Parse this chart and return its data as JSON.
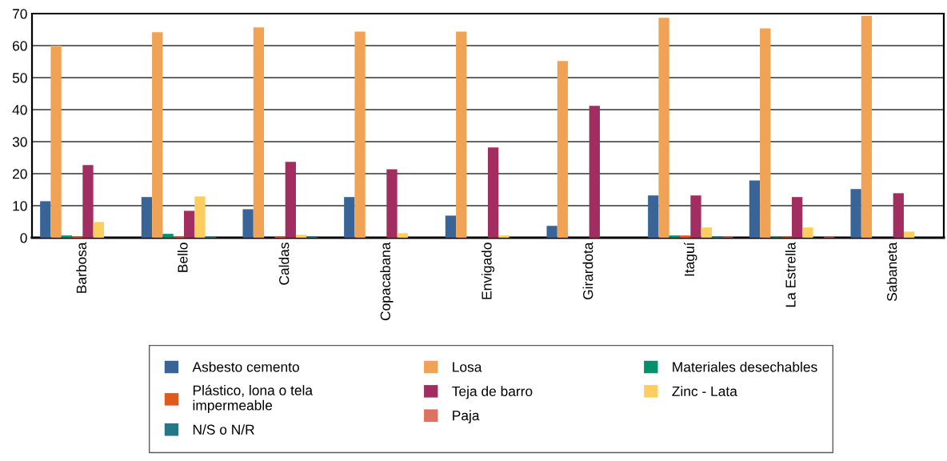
{
  "chart_data": {
    "type": "bar",
    "categories": [
      "Barbosa",
      "Bello",
      "Caldas",
      "Copacabana",
      "Envigado",
      "Girardota",
      "Itaguí",
      "La Estrella",
      "Sabaneta"
    ],
    "series": [
      {
        "name": "Asbesto cemento",
        "color": "#386498",
        "values": [
          11.4,
          12.7,
          8.9,
          12.7,
          6.9,
          3.7,
          13.2,
          17.9,
          15.2
        ]
      },
      {
        "name": "Losa",
        "color": "#f0a354",
        "values": [
          60.0,
          64.2,
          65.7,
          64.4,
          64.4,
          55.2,
          68.7,
          65.4,
          69.3
        ]
      },
      {
        "name": "Materiales desechables",
        "color": "#00906e",
        "values": [
          0.7,
          1.2,
          0,
          0,
          0,
          0,
          0.7,
          0.2,
          0
        ]
      },
      {
        "name": "Plástico, lona o tela\nimpermeable",
        "color": "#e05a1e",
        "values": [
          0.4,
          0.4,
          0.4,
          0,
          0,
          0,
          0.7,
          0.2,
          0
        ]
      },
      {
        "name": "Teja de barro",
        "color": "#a12d61",
        "values": [
          22.7,
          8.4,
          23.7,
          21.4,
          28.2,
          41.2,
          13.2,
          12.7,
          13.9
        ]
      },
      {
        "name": "Zinc - Lata",
        "color": "#fecd5f",
        "values": [
          4.9,
          12.9,
          0.9,
          1.4,
          0.7,
          0,
          3.2,
          3.2,
          1.9
        ]
      },
      {
        "name": "N/S o N/R",
        "color": "#267688",
        "values": [
          0,
          0.3,
          0.4,
          0,
          0,
          0,
          0.4,
          0,
          0
        ]
      },
      {
        "name": "Paja",
        "color": "#e07062",
        "values": [
          0,
          0,
          0,
          0,
          0,
          0,
          0.2,
          0.2,
          0
        ]
      }
    ],
    "ylim": [
      0,
      70
    ],
    "yticks": [
      0,
      10,
      20,
      30,
      40,
      50,
      60,
      70
    ],
    "grid": "y",
    "legend": "bottom"
  }
}
